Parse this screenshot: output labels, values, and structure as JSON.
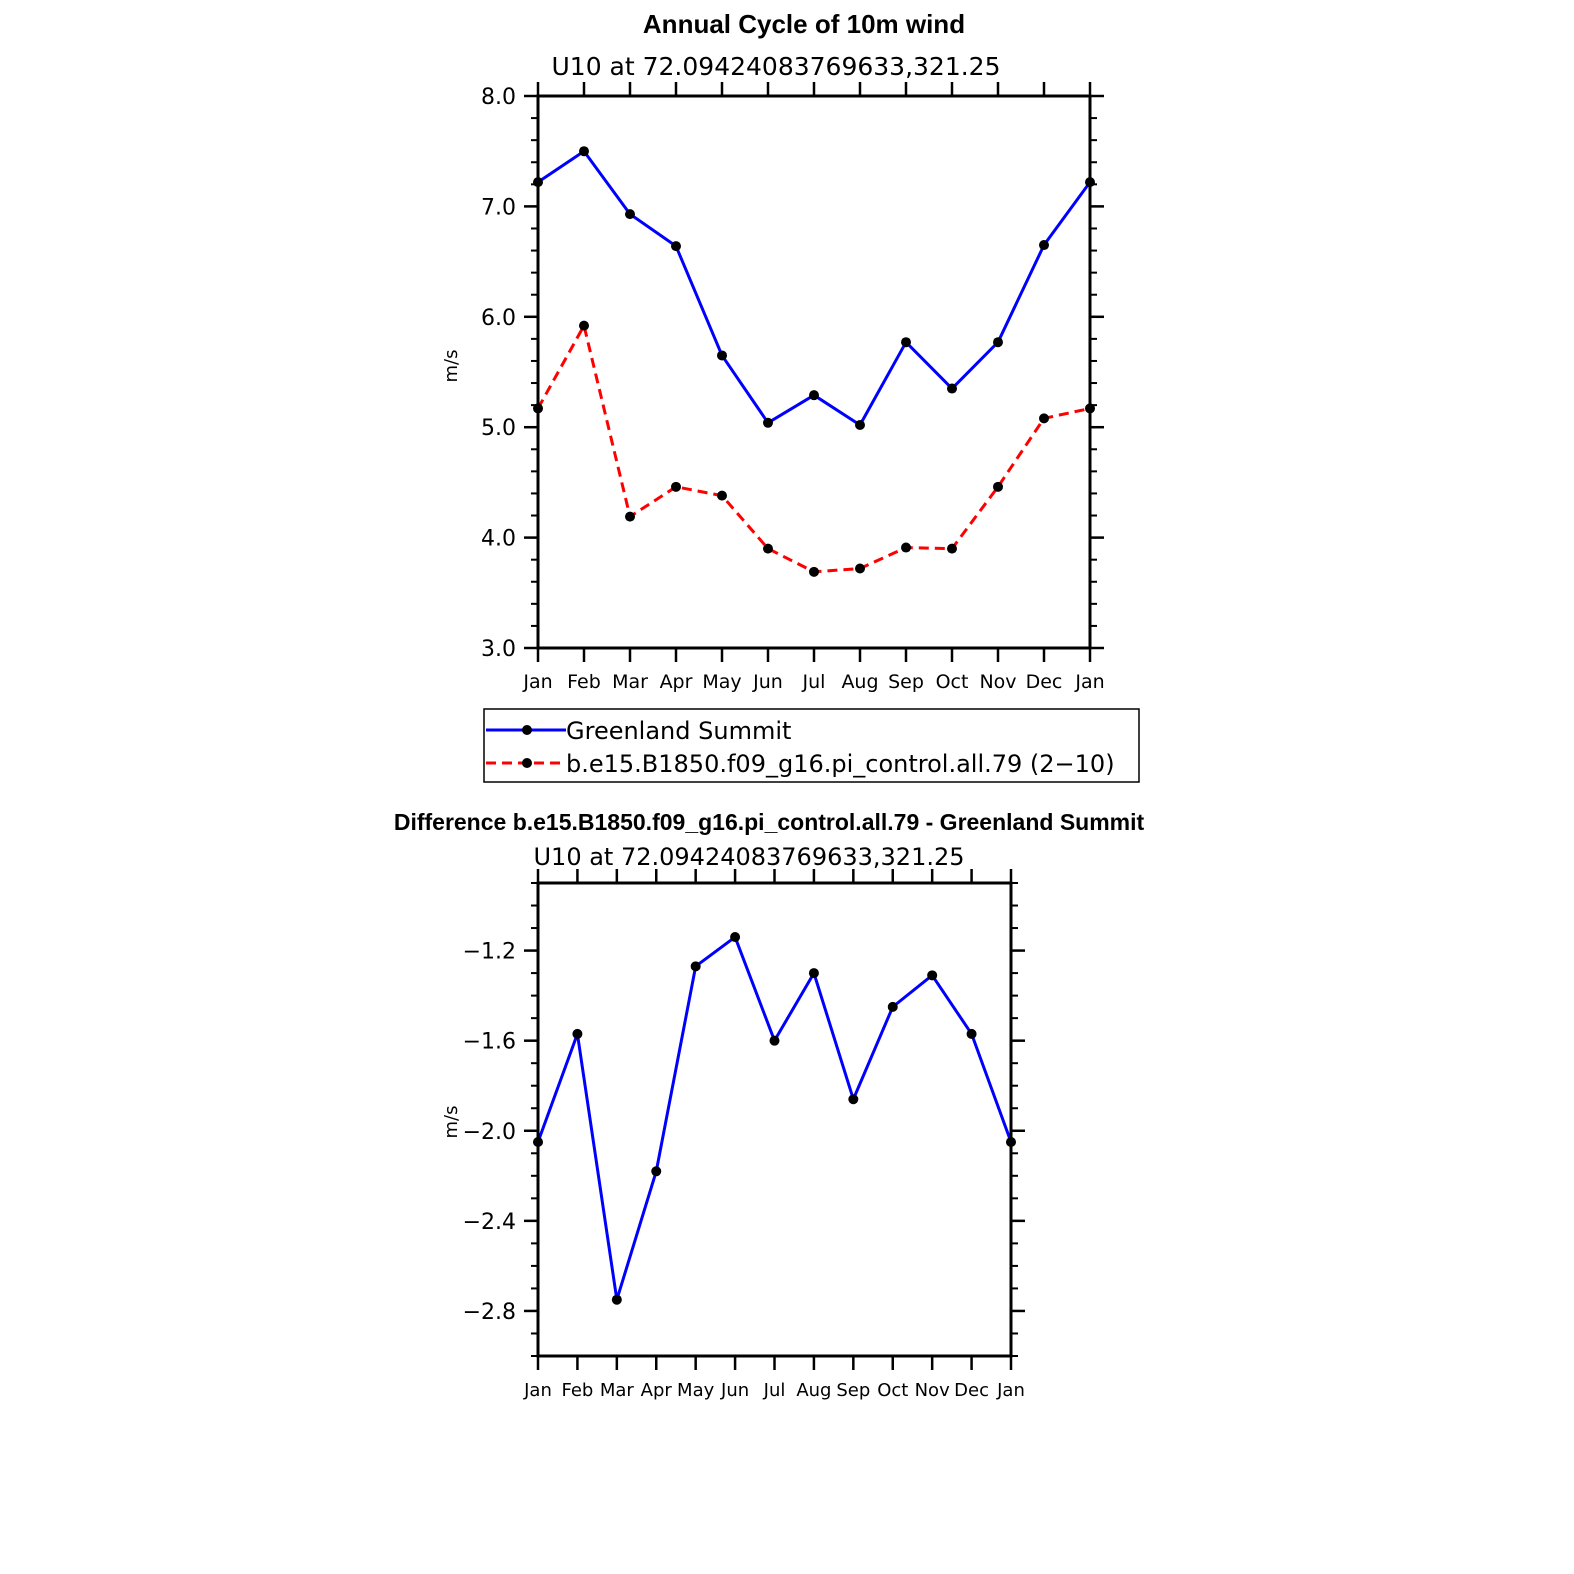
{
  "chart_data": [
    {
      "type": "line",
      "title": "Annual Cycle of 10m wind",
      "subtitle": "U10  at  72.09424083769633,321.25",
      "xlabel": "",
      "ylabel": "m/s",
      "ylim": [
        3.0,
        8.0
      ],
      "yticks": [
        3.0,
        4.0,
        5.0,
        6.0,
        7.0,
        8.0
      ],
      "ytick_labels": [
        "3.0",
        "4.0",
        "5.0",
        "6.0",
        "7.0",
        "8.0"
      ],
      "categories": [
        "Jan",
        "Feb",
        "Mar",
        "Apr",
        "May",
        "Jun",
        "Jul",
        "Aug",
        "Sep",
        "Oct",
        "Nov",
        "Dec",
        "Jan"
      ],
      "series": [
        {
          "name": "Greenland Summit",
          "color": "#0000ff",
          "dash": "solid",
          "values": [
            7.22,
            7.5,
            6.93,
            6.64,
            5.65,
            5.04,
            5.29,
            5.02,
            5.77,
            5.35,
            5.77,
            6.65,
            7.22
          ]
        },
        {
          "name": "b.e15.B1850.f09_g16.pi_control.all.79 (2−10)",
          "color": "#ff0000",
          "dash": "dashed",
          "values": [
            5.17,
            5.92,
            4.19,
            4.46,
            4.38,
            3.9,
            3.69,
            3.72,
            3.91,
            3.9,
            4.46,
            5.08,
            5.17
          ]
        }
      ],
      "legend": "bottom-center"
    },
    {
      "type": "line",
      "title": "Difference b.e15.B1850.f09_g16.pi_control.all.79 - Greenland Summit",
      "subtitle": "U10  at  72.09424083769633,321.25",
      "xlabel": "",
      "ylabel": "m/s",
      "ylim": [
        -3.0,
        -0.9
      ],
      "yticks": [
        -2.8,
        -2.4,
        -2.0,
        -1.6,
        -1.2
      ],
      "ytick_labels": [
        "−2.8",
        "−2.4",
        "−2.0",
        "−1.6",
        "−1.2"
      ],
      "categories": [
        "Jan",
        "Feb",
        "Mar",
        "Apr",
        "May",
        "Jun",
        "Jul",
        "Aug",
        "Sep",
        "Oct",
        "Nov",
        "Dec",
        "Jan"
      ],
      "series": [
        {
          "name": "Difference",
          "color": "#0000ff",
          "dash": "solid",
          "values": [
            -2.05,
            -1.57,
            -2.75,
            -2.18,
            -1.27,
            -1.14,
            -1.6,
            -1.3,
            -1.86,
            -1.45,
            -1.31,
            -1.57,
            -2.05
          ]
        }
      ]
    }
  ]
}
